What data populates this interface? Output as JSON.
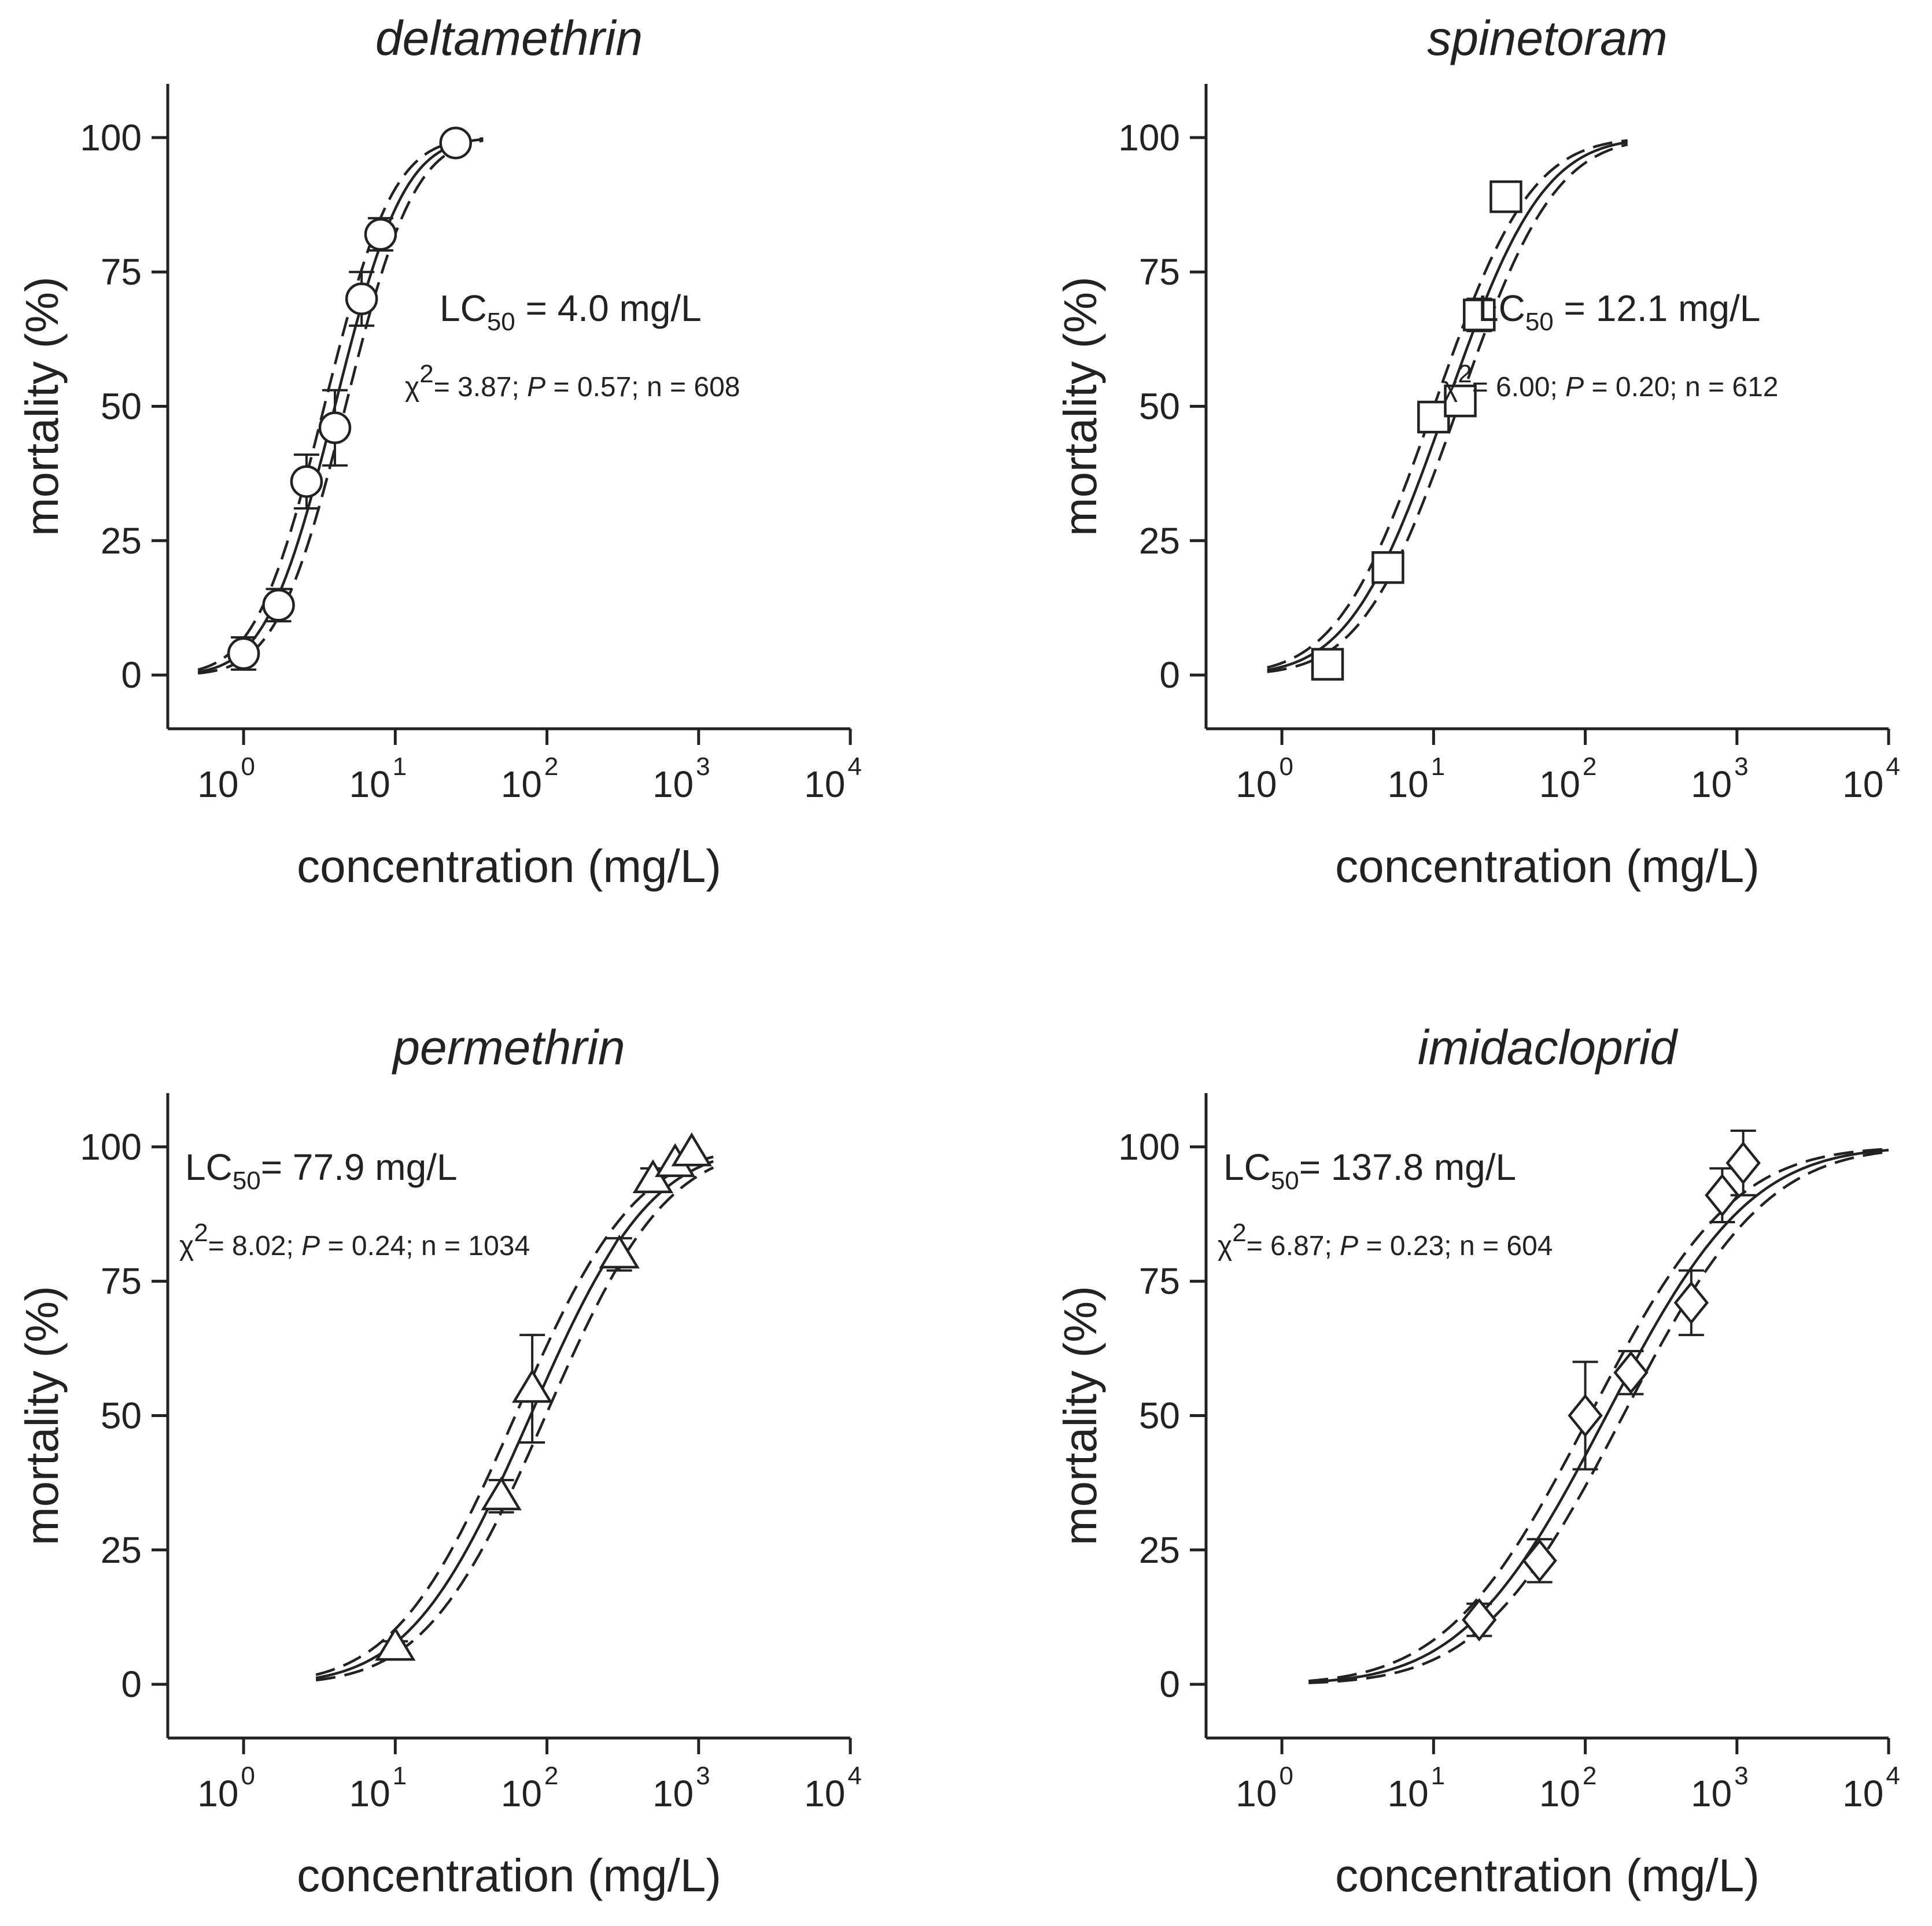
{
  "chart_data": [
    {
      "type": "scatter",
      "title": "deltamethrin",
      "xlabel": "concentration (mg/L)",
      "ylabel": "mortality (%)",
      "xscale": "log10",
      "xlim_log10": [
        -0.5,
        4
      ],
      "ylim": [
        -10,
        110
      ],
      "y_ticks": [
        "0",
        "25",
        "50",
        "75",
        "100"
      ],
      "x_ticks_base": [
        "10",
        "10",
        "10",
        "10",
        "10"
      ],
      "x_ticks_exp": [
        "0",
        "1",
        "2",
        "3",
        "4"
      ],
      "marker": "circle",
      "points": [
        {
          "x": 1.0,
          "y": 4,
          "err": 3
        },
        {
          "x": 1.7,
          "y": 13,
          "err": 3
        },
        {
          "x": 2.6,
          "y": 36,
          "err": 5
        },
        {
          "x": 4.0,
          "y": 46,
          "err": 7
        },
        {
          "x": 6.0,
          "y": 70,
          "err": 5
        },
        {
          "x": 8.0,
          "y": 82,
          "err": 3
        },
        {
          "x": 25,
          "y": 99,
          "err": 0
        }
      ],
      "fit": {
        "lc50": 4.0,
        "slope_probit": 2.8,
        "ci_shift_log10": 0.07,
        "xrange": [
          0.5,
          38
        ]
      },
      "annotation": {
        "lc_prefix": "LC",
        "lc_sub": "50",
        "lc_value": " = 4.0 mg/L",
        "chi_symbol": "χ",
        "chi_sup": "2",
        "chi_value": "= 3.87; ",
        "p_symbol": "P",
        "stats_rest": " = 0.57; n = 608",
        "position": "upper-right"
      }
    },
    {
      "type": "scatter",
      "title": "spinetoram",
      "xlabel": "concentration (mg/L)",
      "ylabel": "mortality (%)",
      "xscale": "log10",
      "xlim_log10": [
        -0.5,
        4
      ],
      "ylim": [
        -10,
        110
      ],
      "y_ticks": [
        "0",
        "25",
        "50",
        "75",
        "100"
      ],
      "x_ticks_base": [
        "10",
        "10",
        "10",
        "10",
        "10"
      ],
      "x_ticks_exp": [
        "0",
        "1",
        "2",
        "3",
        "4"
      ],
      "marker": "square",
      "points": [
        {
          "x": 2.0,
          "y": 2,
          "err": 0
        },
        {
          "x": 5.0,
          "y": 20,
          "err": 0
        },
        {
          "x": 10,
          "y": 48,
          "err": 0
        },
        {
          "x": 15,
          "y": 51,
          "err": 0
        },
        {
          "x": 20,
          "y": 67,
          "err": 3
        },
        {
          "x": 30,
          "y": 89,
          "err": 0
        }
      ],
      "fit": {
        "lc50": 12.1,
        "slope_probit": 2.0,
        "ci_shift_log10": 0.08,
        "xrange": [
          0.8,
          190
        ]
      },
      "annotation": {
        "lc_prefix": "LC",
        "lc_sub": "50",
        "lc_value": " = 12.1 mg/L",
        "chi_symbol": "χ",
        "chi_sup": "2",
        "chi_value": "= 6.00; ",
        "p_symbol": "P",
        "stats_rest": " = 0.20; n = 612",
        "position": "upper-right"
      }
    },
    {
      "type": "scatter",
      "title": "permethrin",
      "xlabel": "concentration (mg/L)",
      "ylabel": "mortality (%)",
      "xscale": "log10",
      "xlim_log10": [
        -0.5,
        4
      ],
      "ylim": [
        -10,
        110
      ],
      "y_ticks": [
        "0",
        "25",
        "50",
        "75",
        "100"
      ],
      "x_ticks_base": [
        "10",
        "10",
        "10",
        "10",
        "10"
      ],
      "x_ticks_exp": [
        "0",
        "1",
        "2",
        "3",
        "4"
      ],
      "marker": "triangle",
      "points": [
        {
          "x": 10,
          "y": 7,
          "err": 1
        },
        {
          "x": 50,
          "y": 35,
          "err": 3
        },
        {
          "x": 80,
          "y": 55,
          "err": 10
        },
        {
          "x": 300,
          "y": 80,
          "err": 3
        },
        {
          "x": 500,
          "y": 94,
          "err": 2
        },
        {
          "x": 700,
          "y": 97,
          "err": 0
        },
        {
          "x": 900,
          "y": 99,
          "err": 0
        }
      ],
      "fit": {
        "lc50": 77.9,
        "slope_probit": 1.6,
        "ci_shift_log10": 0.1,
        "xrange": [
          3,
          1250
        ]
      },
      "annotation": {
        "lc_prefix": "LC",
        "lc_sub": "50",
        "lc_value": "= 77.9 mg/L",
        "chi_symbol": "χ",
        "chi_sup": "2",
        "chi_value": "= 8.02; ",
        "p_symbol": "P",
        "stats_rest": " = 0.24; n = 1034",
        "position": "upper-left"
      }
    },
    {
      "type": "scatter",
      "title": "imidacloprid",
      "xlabel": "concentration (mg/L)",
      "ylabel": "mortality (%)",
      "xscale": "log10",
      "xlim_log10": [
        -0.5,
        4
      ],
      "ylim": [
        -10,
        110
      ],
      "y_ticks": [
        "0",
        "25",
        "50",
        "75",
        "100"
      ],
      "x_ticks_base": [
        "10",
        "10",
        "10",
        "10",
        "10"
      ],
      "x_ticks_exp": [
        "0",
        "1",
        "2",
        "3",
        "4"
      ],
      "marker": "diamond",
      "points": [
        {
          "x": 20,
          "y": 12,
          "err": 3
        },
        {
          "x": 50,
          "y": 23,
          "err": 4
        },
        {
          "x": 100,
          "y": 50,
          "err": 10
        },
        {
          "x": 200,
          "y": 58,
          "err": 4
        },
        {
          "x": 500,
          "y": 71,
          "err": 6
        },
        {
          "x": 800,
          "y": 91,
          "err": 5
        },
        {
          "x": 1100,
          "y": 97,
          "err": 6
        }
      ],
      "fit": {
        "lc50": 137.8,
        "slope_probit": 1.35,
        "ci_shift_log10": 0.11,
        "xrange": [
          1.5,
          10000
        ]
      },
      "annotation": {
        "lc_prefix": "LC",
        "lc_sub": "50",
        "lc_value": "= 137.8 mg/L",
        "chi_symbol": "χ",
        "chi_sup": "2",
        "chi_value": "= 6.87; ",
        "p_symbol": "P",
        "stats_rest": " = 0.23; n = 604",
        "position": "upper-left"
      }
    }
  ]
}
